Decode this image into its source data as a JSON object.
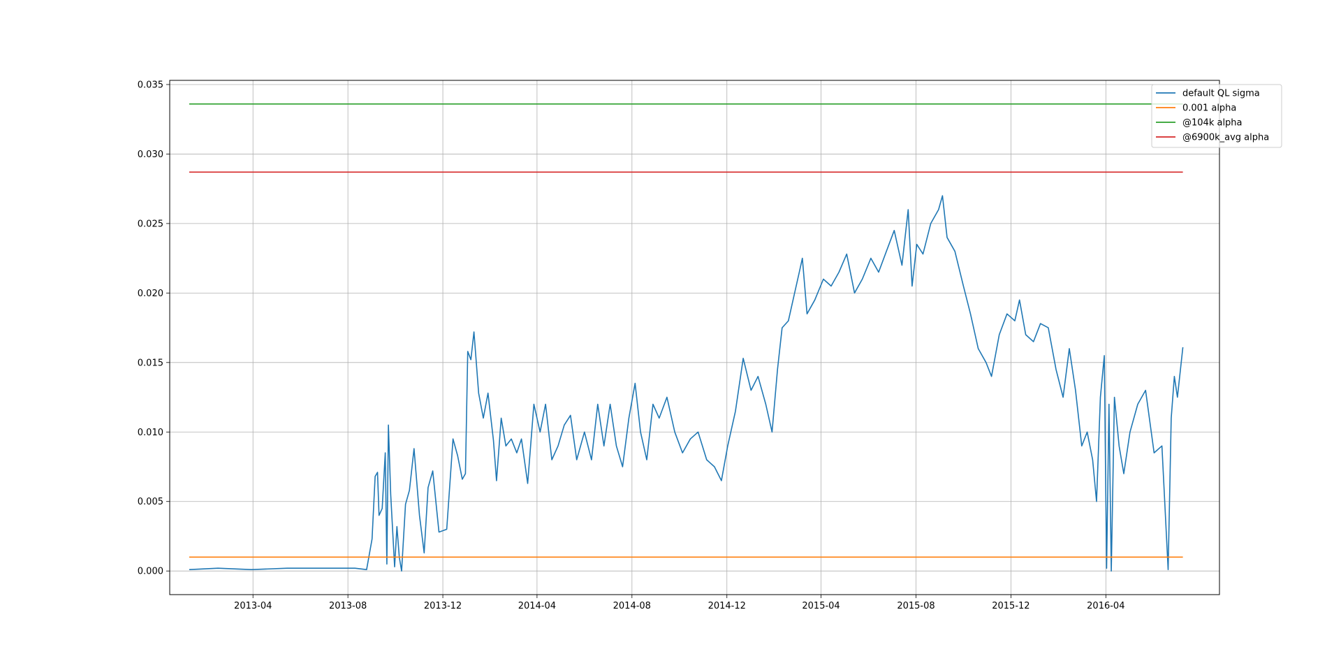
{
  "chart_data": {
    "type": "line",
    "title": "",
    "xlabel": "",
    "ylabel": "",
    "x_range": [
      "2013-01-09",
      "2016-07-09"
    ],
    "xlim": [
      "2012-12-15",
      "2016-08-25"
    ],
    "ylim": [
      -0.0017,
      0.0353
    ],
    "grid": true,
    "legend_position": "top-right",
    "x_ticks": [
      "2013-04",
      "2013-08",
      "2013-12",
      "2014-04",
      "2014-08",
      "2014-12",
      "2015-04",
      "2015-08",
      "2015-12",
      "2016-04"
    ],
    "y_ticks": [
      "0.000",
      "0.005",
      "0.010",
      "0.015",
      "0.020",
      "0.025",
      "0.030",
      "0.035"
    ],
    "series": [
      {
        "name": "default QL sigma",
        "color": "#1f77b4",
        "points": [
          [
            "2013-01-09",
            0.0001
          ],
          [
            "2013-02-15",
            0.0002
          ],
          [
            "2013-03-30",
            0.0001
          ],
          [
            "2013-05-15",
            0.0002
          ],
          [
            "2013-06-30",
            0.0002
          ],
          [
            "2013-08-10",
            0.0002
          ],
          [
            "2013-08-25",
            0.0001
          ],
          [
            "2013-09-01",
            0.0023
          ],
          [
            "2013-09-05",
            0.0068
          ],
          [
            "2013-09-08",
            0.0071
          ],
          [
            "2013-09-10",
            0.004
          ],
          [
            "2013-09-14",
            0.0045
          ],
          [
            "2013-09-18",
            0.0085
          ],
          [
            "2013-09-20",
            0.0005
          ],
          [
            "2013-09-22",
            0.0105
          ],
          [
            "2013-09-25",
            0.0055
          ],
          [
            "2013-09-30",
            0.0003
          ],
          [
            "2013-10-03",
            0.0032
          ],
          [
            "2013-10-06",
            0.001
          ],
          [
            "2013-10-09",
            0.0
          ],
          [
            "2013-10-14",
            0.0048
          ],
          [
            "2013-10-19",
            0.0058
          ],
          [
            "2013-10-25",
            0.0088
          ],
          [
            "2013-11-01",
            0.004
          ],
          [
            "2013-11-07",
            0.0013
          ],
          [
            "2013-11-12",
            0.006
          ],
          [
            "2013-11-18",
            0.0072
          ],
          [
            "2013-11-26",
            0.0028
          ],
          [
            "2013-12-06",
            0.003
          ],
          [
            "2013-12-14",
            0.0095
          ],
          [
            "2013-12-20",
            0.0083
          ],
          [
            "2013-12-26",
            0.0066
          ],
          [
            "2013-12-30",
            0.007
          ],
          [
            "2014-01-02",
            0.0158
          ],
          [
            "2014-01-06",
            0.0152
          ],
          [
            "2014-01-10",
            0.0172
          ],
          [
            "2014-01-16",
            0.0128
          ],
          [
            "2014-01-22",
            0.011
          ],
          [
            "2014-01-28",
            0.0128
          ],
          [
            "2014-02-04",
            0.0094
          ],
          [
            "2014-02-08",
            0.0065
          ],
          [
            "2014-02-14",
            0.011
          ],
          [
            "2014-02-20",
            0.009
          ],
          [
            "2014-02-27",
            0.0095
          ],
          [
            "2014-03-06",
            0.0085
          ],
          [
            "2014-03-12",
            0.0095
          ],
          [
            "2014-03-20",
            0.0063
          ],
          [
            "2014-03-28",
            0.012
          ],
          [
            "2014-04-05",
            0.01
          ],
          [
            "2014-04-12",
            0.012
          ],
          [
            "2014-04-20",
            0.008
          ],
          [
            "2014-04-28",
            0.009
          ],
          [
            "2014-05-06",
            0.0105
          ],
          [
            "2014-05-14",
            0.0112
          ],
          [
            "2014-05-22",
            0.008
          ],
          [
            "2014-06-01",
            0.01
          ],
          [
            "2014-06-10",
            0.008
          ],
          [
            "2014-06-18",
            0.012
          ],
          [
            "2014-06-26",
            0.009
          ],
          [
            "2014-07-04",
            0.012
          ],
          [
            "2014-07-12",
            0.009
          ],
          [
            "2014-07-20",
            0.0075
          ],
          [
            "2014-07-28",
            0.011
          ],
          [
            "2014-08-05",
            0.0135
          ],
          [
            "2014-08-12",
            0.01
          ],
          [
            "2014-08-20",
            0.008
          ],
          [
            "2014-08-28",
            0.012
          ],
          [
            "2014-09-05",
            0.011
          ],
          [
            "2014-09-15",
            0.0125
          ],
          [
            "2014-09-25",
            0.01
          ],
          [
            "2014-10-05",
            0.0085
          ],
          [
            "2014-10-15",
            0.0095
          ],
          [
            "2014-10-25",
            0.01
          ],
          [
            "2014-11-05",
            0.008
          ],
          [
            "2014-11-15",
            0.0075
          ],
          [
            "2014-11-24",
            0.0065
          ],
          [
            "2014-12-02",
            0.009
          ],
          [
            "2014-12-12",
            0.0115
          ],
          [
            "2014-12-22",
            0.0153
          ],
          [
            "2015-01-01",
            0.013
          ],
          [
            "2015-01-10",
            0.014
          ],
          [
            "2015-01-20",
            0.012
          ],
          [
            "2015-01-28",
            0.01
          ],
          [
            "2015-02-04",
            0.0145
          ],
          [
            "2015-02-10",
            0.0175
          ],
          [
            "2015-02-18",
            0.018
          ],
          [
            "2015-02-26",
            0.02
          ],
          [
            "2015-03-04",
            0.0215
          ],
          [
            "2015-03-08",
            0.0225
          ],
          [
            "2015-03-14",
            0.0185
          ],
          [
            "2015-03-24",
            0.0195
          ],
          [
            "2015-04-04",
            0.021
          ],
          [
            "2015-04-14",
            0.0205
          ],
          [
            "2015-04-24",
            0.0215
          ],
          [
            "2015-05-04",
            0.0228
          ],
          [
            "2015-05-14",
            0.02
          ],
          [
            "2015-05-24",
            0.021
          ],
          [
            "2015-06-04",
            0.0225
          ],
          [
            "2015-06-14",
            0.0215
          ],
          [
            "2015-06-24",
            0.023
          ],
          [
            "2015-07-04",
            0.0245
          ],
          [
            "2015-07-14",
            0.022
          ],
          [
            "2015-07-22",
            0.026
          ],
          [
            "2015-07-27",
            0.0205
          ],
          [
            "2015-08-02",
            0.0235
          ],
          [
            "2015-08-10",
            0.0228
          ],
          [
            "2015-08-20",
            0.025
          ],
          [
            "2015-08-30",
            0.026
          ],
          [
            "2015-09-04",
            0.027
          ],
          [
            "2015-09-10",
            0.024
          ],
          [
            "2015-09-20",
            0.023
          ],
          [
            "2015-10-01",
            0.0205
          ],
          [
            "2015-10-10",
            0.0185
          ],
          [
            "2015-10-20",
            0.016
          ],
          [
            "2015-10-30",
            0.015
          ],
          [
            "2015-11-06",
            0.014
          ],
          [
            "2015-11-16",
            0.017
          ],
          [
            "2015-11-26",
            0.0185
          ],
          [
            "2015-12-06",
            0.018
          ],
          [
            "2015-12-12",
            0.0195
          ],
          [
            "2015-12-20",
            0.017
          ],
          [
            "2015-12-30",
            0.0165
          ],
          [
            "2016-01-08",
            0.0178
          ],
          [
            "2016-01-18",
            0.0175
          ],
          [
            "2016-01-28",
            0.0145
          ],
          [
            "2016-02-06",
            0.0125
          ],
          [
            "2016-02-14",
            0.016
          ],
          [
            "2016-02-22",
            0.013
          ],
          [
            "2016-03-01",
            0.009
          ],
          [
            "2016-03-08",
            0.01
          ],
          [
            "2016-03-15",
            0.008
          ],
          [
            "2016-03-20",
            0.005
          ],
          [
            "2016-03-25",
            0.0125
          ],
          [
            "2016-03-30",
            0.0155
          ],
          [
            "2016-04-02",
            0.0002
          ],
          [
            "2016-04-05",
            0.012
          ],
          [
            "2016-04-08",
            0.0
          ],
          [
            "2016-04-12",
            0.0125
          ],
          [
            "2016-04-18",
            0.009
          ],
          [
            "2016-04-24",
            0.007
          ],
          [
            "2016-05-02",
            0.01
          ],
          [
            "2016-05-12",
            0.012
          ],
          [
            "2016-05-22",
            0.013
          ],
          [
            "2016-06-02",
            0.0085
          ],
          [
            "2016-06-12",
            0.009
          ],
          [
            "2016-06-20",
            0.0001
          ],
          [
            "2016-06-24",
            0.011
          ],
          [
            "2016-06-28",
            0.014
          ],
          [
            "2016-07-02",
            0.0125
          ],
          [
            "2016-07-09",
            0.0161
          ]
        ]
      },
      {
        "name": "0.001 alpha",
        "color": "#ff7f0e",
        "constant": 0.001
      },
      {
        "name": "@104k alpha",
        "color": "#2ca02c",
        "constant": 0.0336
      },
      {
        "name": "@6900k_avg alpha",
        "color": "#d62728",
        "constant": 0.0287
      }
    ]
  }
}
